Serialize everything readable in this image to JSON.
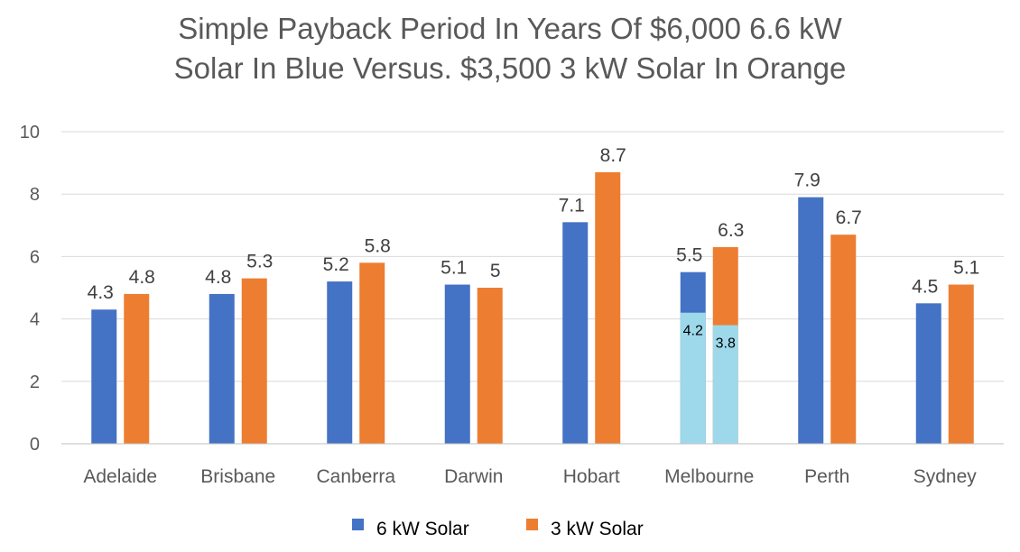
{
  "chart_data": {
    "type": "bar",
    "title_line1": "Simple Payback Period In Years Of $6,000 6.6 kW",
    "title_line2": "Solar In Blue Versus. $3,500 3 kW Solar In Orange",
    "categories": [
      "Adelaide",
      "Brisbane",
      "Canberra",
      "Darwin",
      "Hobart",
      "Melbourne",
      "Perth",
      "Sydney"
    ],
    "series": [
      {
        "name": "6 kW Solar",
        "color": "#4472C4",
        "values": [
          4.3,
          4.8,
          5.2,
          5.1,
          7.1,
          5.5,
          7.9,
          4.5
        ]
      },
      {
        "name": "3 kW Solar",
        "color": "#ED7D31",
        "values": [
          4.8,
          5.3,
          5.8,
          5.0,
          8.7,
          6.3,
          6.7,
          5.1
        ]
      }
    ],
    "highlights": [
      {
        "category": "Melbourne",
        "series": 0,
        "value": 4.2,
        "label": "4.2",
        "color": "#9DD9EA"
      },
      {
        "category": "Melbourne",
        "series": 1,
        "value": 3.8,
        "label": "3.8",
        "color": "#9DD9EA"
      }
    ],
    "ylim": [
      0,
      10
    ],
    "yticks": [
      0,
      2,
      4,
      6,
      8,
      10
    ],
    "grid": true,
    "legend_position": "bottom",
    "xlabel": "",
    "ylabel": ""
  }
}
